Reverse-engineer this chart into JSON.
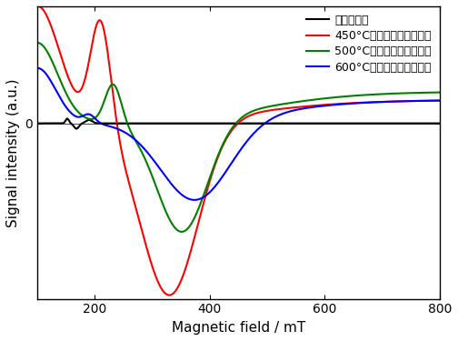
{
  "xlabel": "Magnetic field / mT",
  "ylabel": "Signal intensity (a.u.)",
  "xlim": [
    100,
    800
  ],
  "ylim": [
    -1.05,
    0.7
  ],
  "xticks": [
    200,
    400,
    600,
    800
  ],
  "legend_entries": [
    "アズデポ膜",
    "450°C　ポストアニール膜",
    "500°C　ポストアニール膜",
    "600°C　ポストアニール膜"
  ],
  "colors": [
    "black",
    "red",
    "green",
    "blue"
  ],
  "background": "white",
  "legend_fontsize": 9,
  "axis_fontsize": 11,
  "linewidth": 1.5
}
